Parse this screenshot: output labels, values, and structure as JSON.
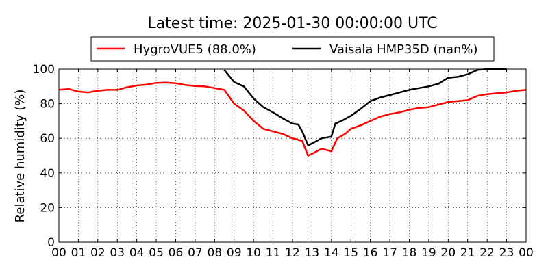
{
  "chart_data": {
    "type": "line",
    "title": "Latest time: 2025-01-30 00:00:00 UTC",
    "xlabel": "",
    "ylabel": "Relative humidity (%)",
    "xlim": [
      0,
      24
    ],
    "ylim": [
      0,
      100
    ],
    "x_ticks": [
      0,
      1,
      2,
      3,
      4,
      5,
      6,
      7,
      8,
      9,
      10,
      11,
      12,
      13,
      14,
      15,
      16,
      17,
      18,
      19,
      20,
      21,
      22,
      23,
      24
    ],
    "x_tick_labels": [
      "00",
      "01",
      "02",
      "03",
      "04",
      "05",
      "06",
      "07",
      "08",
      "09",
      "10",
      "11",
      "12",
      "13",
      "14",
      "15",
      "16",
      "17",
      "18",
      "19",
      "20",
      "21",
      "22",
      "23",
      "00"
    ],
    "y_ticks": [
      0,
      20,
      40,
      60,
      80,
      100
    ],
    "y_tick_labels": [
      "0",
      "20",
      "40",
      "60",
      "80",
      "100"
    ],
    "grid": true,
    "legend_position": "top-center",
    "series": [
      {
        "name": "HygroVUE5 (88.0%)",
        "color": "#ff0000",
        "points": [
          [
            0,
            88
          ],
          [
            0.5,
            88.5
          ],
          [
            1,
            87
          ],
          [
            1.5,
            86.5
          ],
          [
            2,
            87.5
          ],
          [
            2.5,
            88
          ],
          [
            3,
            88
          ],
          [
            3.5,
            89.5
          ],
          [
            4,
            90.5
          ],
          [
            4.5,
            91
          ],
          [
            5,
            92
          ],
          [
            5.5,
            92.2
          ],
          [
            6,
            91.8
          ],
          [
            6.5,
            90.8
          ],
          [
            7,
            90.2
          ],
          [
            7.5,
            90
          ],
          [
            8,
            89
          ],
          [
            8.5,
            88
          ],
          [
            9,
            80
          ],
          [
            9.5,
            76
          ],
          [
            10,
            70
          ],
          [
            10.5,
            65.5
          ],
          [
            11,
            64
          ],
          [
            11.5,
            62.5
          ],
          [
            12,
            60
          ],
          [
            12.5,
            58.5
          ],
          [
            12.8,
            50
          ],
          [
            13,
            51
          ],
          [
            13.5,
            54
          ],
          [
            14,
            52.5
          ],
          [
            14.3,
            60
          ],
          [
            14.7,
            62.5
          ],
          [
            15,
            65.5
          ],
          [
            15.5,
            67.5
          ],
          [
            16,
            70
          ],
          [
            16.5,
            72.5
          ],
          [
            17,
            74
          ],
          [
            17.5,
            75
          ],
          [
            18,
            76.5
          ],
          [
            18.5,
            77.5
          ],
          [
            19,
            78
          ],
          [
            19.5,
            79.5
          ],
          [
            20,
            81
          ],
          [
            20.5,
            81.5
          ],
          [
            21,
            82
          ],
          [
            21.5,
            84.5
          ],
          [
            22,
            85.5
          ],
          [
            22.5,
            86
          ],
          [
            23,
            86.5
          ],
          [
            23.5,
            87.5
          ],
          [
            24,
            88
          ]
        ]
      },
      {
        "name": "Vaisala HMP35D (nan%)",
        "color": "#000000",
        "points": [
          [
            8.5,
            99.5
          ],
          [
            9,
            92.5
          ],
          [
            9.5,
            90
          ],
          [
            10,
            83
          ],
          [
            10.5,
            78
          ],
          [
            11,
            75
          ],
          [
            11.5,
            71.5
          ],
          [
            12,
            68.5
          ],
          [
            12.3,
            68
          ],
          [
            12.5,
            64
          ],
          [
            12.8,
            56
          ],
          [
            13,
            57
          ],
          [
            13.5,
            60
          ],
          [
            14,
            61
          ],
          [
            14.2,
            68.5
          ],
          [
            14.6,
            70.5
          ],
          [
            15,
            73
          ],
          [
            15.5,
            77
          ],
          [
            16,
            81.5
          ],
          [
            16.5,
            83.5
          ],
          [
            17,
            85
          ],
          [
            17.5,
            86.5
          ],
          [
            18,
            88
          ],
          [
            18.5,
            89
          ],
          [
            19,
            90
          ],
          [
            19.5,
            91.5
          ],
          [
            20,
            95
          ],
          [
            20.5,
            95.5
          ],
          [
            21,
            97
          ],
          [
            21.5,
            99.5
          ],
          [
            22,
            100
          ],
          [
            22.5,
            100
          ],
          [
            23,
            100
          ]
        ]
      }
    ]
  }
}
